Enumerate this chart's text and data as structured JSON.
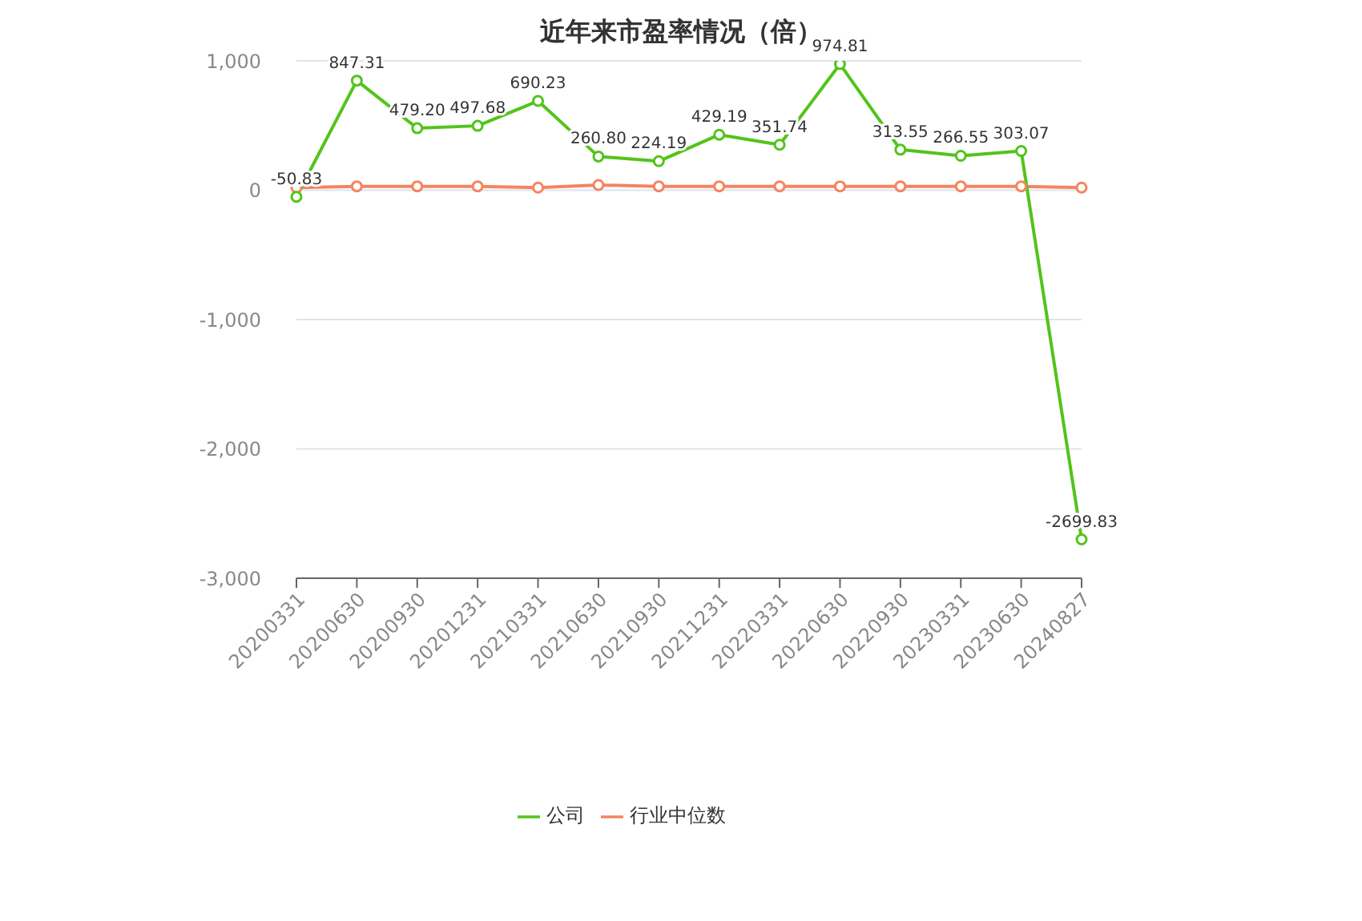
{
  "chart_data": {
    "type": "line",
    "title": "近年来市盈率情况（倍）",
    "categories": [
      "20200331",
      "20200630",
      "20200930",
      "20201231",
      "20210331",
      "20210630",
      "20210930",
      "20211231",
      "20220331",
      "20220630",
      "20220930",
      "20230331",
      "20230630",
      "20240827"
    ],
    "series": [
      {
        "name": "公司",
        "color": "#52c41a",
        "values": [
          -50.83,
          847.31,
          479.2,
          497.68,
          690.23,
          260.8,
          224.19,
          429.19,
          351.74,
          974.81,
          313.55,
          266.55,
          303.07,
          -2699.83
        ],
        "value_labels": [
          "-50.83",
          "847.31",
          "479.20",
          "497.68",
          "690.23",
          "260.80",
          "224.19",
          "429.19",
          "351.74",
          "974.81",
          "313.55",
          "266.55",
          "303.07",
          "-2699.83"
        ]
      },
      {
        "name": "行业中位数",
        "color": "#f4845f",
        "values": [
          20,
          30,
          30,
          30,
          20,
          40,
          30,
          30,
          30,
          30,
          30,
          30,
          30,
          20
        ]
      }
    ],
    "ylim": [
      -3000,
      1000
    ],
    "yticks": [
      {
        "value": -3000,
        "label": "-3,000"
      },
      {
        "value": -2000,
        "label": "-2,000"
      },
      {
        "value": -1000,
        "label": "-1,000"
      },
      0,
      {
        "value": 1000,
        "label": "1,000"
      }
    ],
    "grid": "y",
    "legend": "bottom",
    "marker": "circle",
    "line_style": "solid"
  }
}
